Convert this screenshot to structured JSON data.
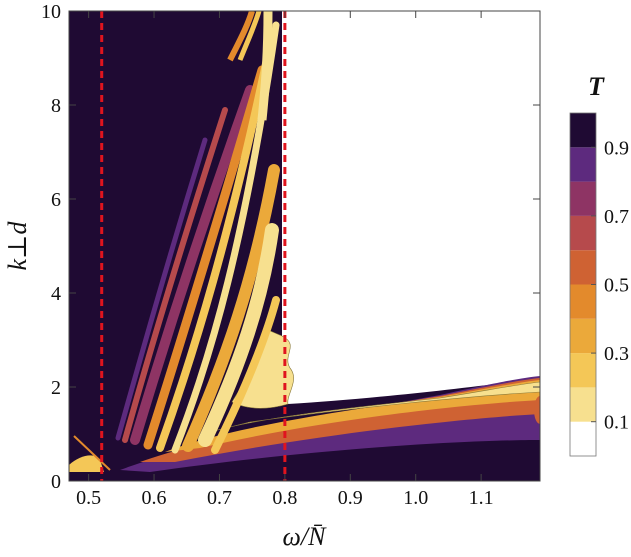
{
  "chart_data": {
    "type": "heatmap",
    "subtype": "contour",
    "title": "",
    "xlabel": "ω/N̄",
    "ylabel": "k⊥d",
    "xlim": [
      0.47,
      1.19
    ],
    "ylim": [
      0,
      10
    ],
    "x_ticks": [
      0.5,
      0.6,
      0.7,
      0.8,
      0.9,
      1.0,
      1.1
    ],
    "x_tick_labels": [
      "0.5",
      "0.6",
      "0.7",
      "0.8",
      "0.9",
      "1.0",
      "1.1"
    ],
    "y_ticks": [
      0,
      2,
      4,
      6,
      8,
      10
    ],
    "y_tick_labels": [
      "0",
      "2",
      "4",
      "6",
      "8",
      "10"
    ],
    "vertical_reference_lines": [
      {
        "x": 0.52,
        "style": "dashed",
        "color": "#e0141e"
      },
      {
        "x": 0.8,
        "style": "dashed",
        "color": "#e0141e"
      }
    ],
    "colorbar": {
      "title": "T",
      "levels": [
        0,
        0.1,
        0.2,
        0.3,
        0.4,
        0.5,
        0.6,
        0.7,
        0.8,
        0.9,
        1.0
      ],
      "tick_values": [
        0.1,
        0.3,
        0.5,
        0.7,
        0.9
      ],
      "tick_labels": [
        "0.1",
        "0.3",
        "0.5",
        "0.7",
        "0.9"
      ],
      "band_colors": [
        "#ffffff",
        "#f7e08f",
        "#f4c757",
        "#eba93a",
        "#e38a2c",
        "#cf6233",
        "#b64a4c",
        "#8e3464",
        "#5d2a7e",
        "#1f0a33"
      ]
    },
    "regions": [
      {
        "name": "high-transmission",
        "approx_T": 0.95,
        "description": "dark background"
      },
      {
        "name": "zero-transmission",
        "approx_T": 0.0,
        "x_range": [
          0.8,
          1.19
        ],
        "y_range": [
          1.6,
          10
        ]
      }
    ]
  }
}
